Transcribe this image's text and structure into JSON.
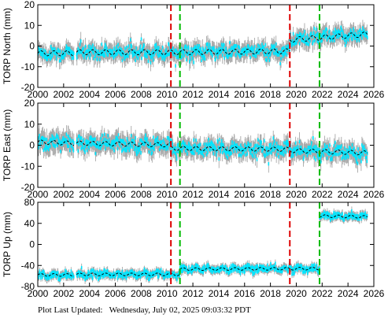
{
  "footer": {
    "label": "Plot Last Updated:",
    "timestamp": "Wednesday, July 02, 2025 09:03:32 PDT"
  },
  "colors": {
    "data_points": "#00e5ff",
    "error_bars": "#a8a8a8",
    "model_fit": "#000000",
    "red_event_line": "#dd0000",
    "green_event_line": "#00bb00"
  },
  "chart_data": [
    {
      "type": "scatter",
      "ylabel": "TORP North (mm)",
      "xlim": [
        2000,
        2026
      ],
      "ylim": [
        -20,
        20
      ],
      "xticks": [
        2000,
        2002,
        2004,
        2006,
        2008,
        2010,
        2012,
        2014,
        2016,
        2018,
        2020,
        2022,
        2024,
        2026
      ],
      "yticks": [
        -20,
        -10,
        0,
        10,
        20
      ],
      "red_event_lines": [
        2010.3,
        2019.5
      ],
      "green_event_lines": [
        2011.0,
        2021.8
      ],
      "segments": [
        {
          "x_start": 2000.0,
          "x_end": 2002.8,
          "offset": -3.5,
          "trend": 0.0,
          "seasonal_amp": 1.2,
          "scatter": 2.8
        },
        {
          "x_start": 2003.0,
          "x_end": 2010.3,
          "offset": -3.0,
          "trend": 0.0,
          "seasonal_amp": 1.2,
          "scatter": 3.0
        },
        {
          "x_start": 2010.3,
          "x_end": 2019.5,
          "offset": -3.0,
          "trend": 0.05,
          "seasonal_amp": 1.2,
          "scatter": 3.0
        },
        {
          "x_start": 2019.5,
          "x_end": 2025.5,
          "offset": 3.0,
          "trend": 0.45,
          "seasonal_amp": 1.2,
          "scatter": 3.0
        }
      ]
    },
    {
      "type": "scatter",
      "ylabel": "TORP East (mm)",
      "xlim": [
        2000,
        2026
      ],
      "ylim": [
        -20,
        20
      ],
      "xticks": [
        2000,
        2002,
        2004,
        2006,
        2008,
        2010,
        2012,
        2014,
        2016,
        2018,
        2020,
        2022,
        2024,
        2026
      ],
      "yticks": [
        -20,
        -10,
        0,
        10,
        20
      ],
      "red_event_lines": [
        2010.3,
        2019.5
      ],
      "green_event_lines": [
        2011.0,
        2021.8
      ],
      "segments": [
        {
          "x_start": 2000.0,
          "x_end": 2002.8,
          "offset": 1.5,
          "trend": -0.2,
          "seasonal_amp": 1.0,
          "scatter": 3.5
        },
        {
          "x_start": 2003.0,
          "x_end": 2010.3,
          "offset": 1.0,
          "trend": -0.12,
          "seasonal_amp": 1.0,
          "scatter": 3.2
        },
        {
          "x_start": 2010.3,
          "x_end": 2019.5,
          "offset": -1.5,
          "trend": -0.05,
          "seasonal_amp": 1.0,
          "scatter": 3.0
        },
        {
          "x_start": 2019.5,
          "x_end": 2025.5,
          "offset": -2.5,
          "trend": -0.2,
          "seasonal_amp": 1.0,
          "scatter": 3.0
        }
      ]
    },
    {
      "type": "scatter",
      "ylabel": "TORP Up (mm)",
      "xlim": [
        2000,
        2026
      ],
      "ylim": [
        -80,
        80
      ],
      "xticks": [
        2000,
        2002,
        2004,
        2006,
        2008,
        2010,
        2012,
        2014,
        2016,
        2018,
        2020,
        2022,
        2024,
        2026
      ],
      "yticks": [
        -80,
        -40,
        0,
        40,
        80
      ],
      "red_event_lines": [
        2010.3,
        2019.5
      ],
      "green_event_lines": [
        2011.0,
        2021.8
      ],
      "segments": [
        {
          "x_start": 2000.0,
          "x_end": 2002.8,
          "offset": -58,
          "trend": 0.0,
          "seasonal_amp": 2.5,
          "scatter": 6
        },
        {
          "x_start": 2003.0,
          "x_end": 2011.0,
          "offset": -57,
          "trend": 0.0,
          "seasonal_amp": 2.5,
          "scatter": 6
        },
        {
          "x_start": 2011.0,
          "x_end": 2021.8,
          "offset": -47,
          "trend": 0.1,
          "seasonal_amp": 2.5,
          "scatter": 6
        },
        {
          "x_start": 2021.8,
          "x_end": 2025.5,
          "offset": 54,
          "trend": -0.5,
          "seasonal_amp": 2.5,
          "scatter": 6
        }
      ]
    }
  ]
}
